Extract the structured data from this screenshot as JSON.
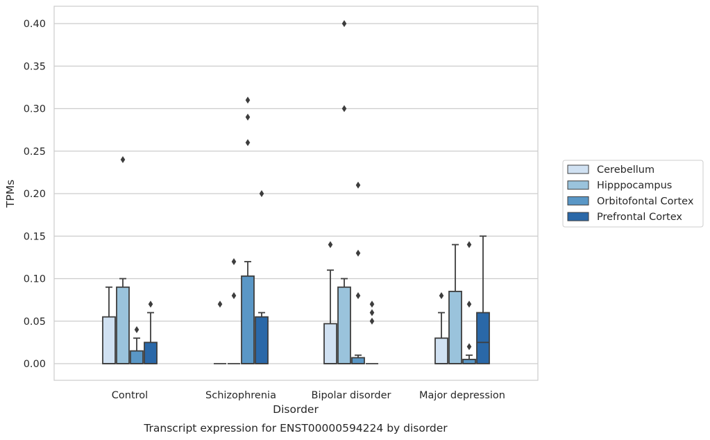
{
  "chart_data": {
    "type": "box",
    "title": "",
    "caption": "Transcript expression for ENST00000594224 by disorder",
    "xlabel": "Disorder",
    "ylabel": "TPMs",
    "ylim": [
      -0.02,
      0.42
    ],
    "yticks": [
      "0.00",
      "0.05",
      "0.10",
      "0.15",
      "0.20",
      "0.25",
      "0.30",
      "0.35",
      "0.40"
    ],
    "grid": "horizontal",
    "legend_position": "right",
    "categories": [
      "Control",
      "Schizophrenia",
      "Bipolar disorder",
      "Major depression"
    ],
    "series": [
      {
        "name": "Cerebellum",
        "color": "#d0e1f2",
        "boxes": [
          {
            "q1": 0.0,
            "median": 0.0,
            "q3": 0.055,
            "whisker_low": 0.0,
            "whisker_high": 0.09,
            "outliers": []
          },
          {
            "q1": 0.0,
            "median": 0.0,
            "q3": 0.0,
            "whisker_low": 0.0,
            "whisker_high": 0.0,
            "outliers": [
              0.07
            ]
          },
          {
            "q1": 0.0,
            "median": 0.0,
            "q3": 0.047,
            "whisker_low": 0.0,
            "whisker_high": 0.11,
            "outliers": [
              0.14
            ]
          },
          {
            "q1": 0.0,
            "median": 0.0,
            "q3": 0.03,
            "whisker_low": 0.0,
            "whisker_high": 0.06,
            "outliers": [
              0.08
            ]
          }
        ]
      },
      {
        "name": "Hipppocampus",
        "color": "#9ac3dc",
        "boxes": [
          {
            "q1": 0.0,
            "median": 0.0,
            "q3": 0.09,
            "whisker_low": 0.0,
            "whisker_high": 0.1,
            "outliers": [
              0.24
            ]
          },
          {
            "q1": 0.0,
            "median": 0.0,
            "q3": 0.0,
            "whisker_low": 0.0,
            "whisker_high": 0.0,
            "outliers": [
              0.08,
              0.12
            ]
          },
          {
            "q1": 0.0,
            "median": 0.0,
            "q3": 0.09,
            "whisker_low": 0.0,
            "whisker_high": 0.1,
            "outliers": [
              0.3,
              0.4
            ]
          },
          {
            "q1": 0.0,
            "median": 0.0,
            "q3": 0.085,
            "whisker_low": 0.0,
            "whisker_high": 0.14,
            "outliers": []
          }
        ]
      },
      {
        "name": "Orbitofontal Cortex",
        "color": "#5a97c6",
        "boxes": [
          {
            "q1": 0.0,
            "median": 0.0,
            "q3": 0.015,
            "whisker_low": 0.0,
            "whisker_high": 0.03,
            "outliers": [
              0.04
            ]
          },
          {
            "q1": 0.0,
            "median": 0.0,
            "q3": 0.103,
            "whisker_low": 0.0,
            "whisker_high": 0.12,
            "outliers": [
              0.26,
              0.29,
              0.31
            ]
          },
          {
            "q1": 0.0,
            "median": 0.0,
            "q3": 0.007,
            "whisker_low": 0.0,
            "whisker_high": 0.01,
            "outliers": [
              0.08,
              0.13,
              0.21
            ]
          },
          {
            "q1": 0.0,
            "median": 0.0,
            "q3": 0.005,
            "whisker_low": 0.0,
            "whisker_high": 0.01,
            "outliers": [
              0.02,
              0.07,
              0.14
            ]
          }
        ]
      },
      {
        "name": "Prefrontal Cortex",
        "color": "#2a68a8",
        "boxes": [
          {
            "q1": 0.0,
            "median": 0.0,
            "q3": 0.025,
            "whisker_low": 0.0,
            "whisker_high": 0.06,
            "outliers": [
              0.07
            ]
          },
          {
            "q1": 0.0,
            "median": 0.0,
            "q3": 0.055,
            "whisker_low": 0.0,
            "whisker_high": 0.06,
            "outliers": [
              0.2
            ]
          },
          {
            "q1": 0.0,
            "median": 0.0,
            "q3": 0.0,
            "whisker_low": 0.0,
            "whisker_high": 0.0,
            "outliers": [
              0.05,
              0.06,
              0.07
            ]
          },
          {
            "q1": 0.0,
            "median": 0.025,
            "q3": 0.06,
            "whisker_low": 0.0,
            "whisker_high": 0.15,
            "outliers": []
          }
        ]
      }
    ]
  }
}
